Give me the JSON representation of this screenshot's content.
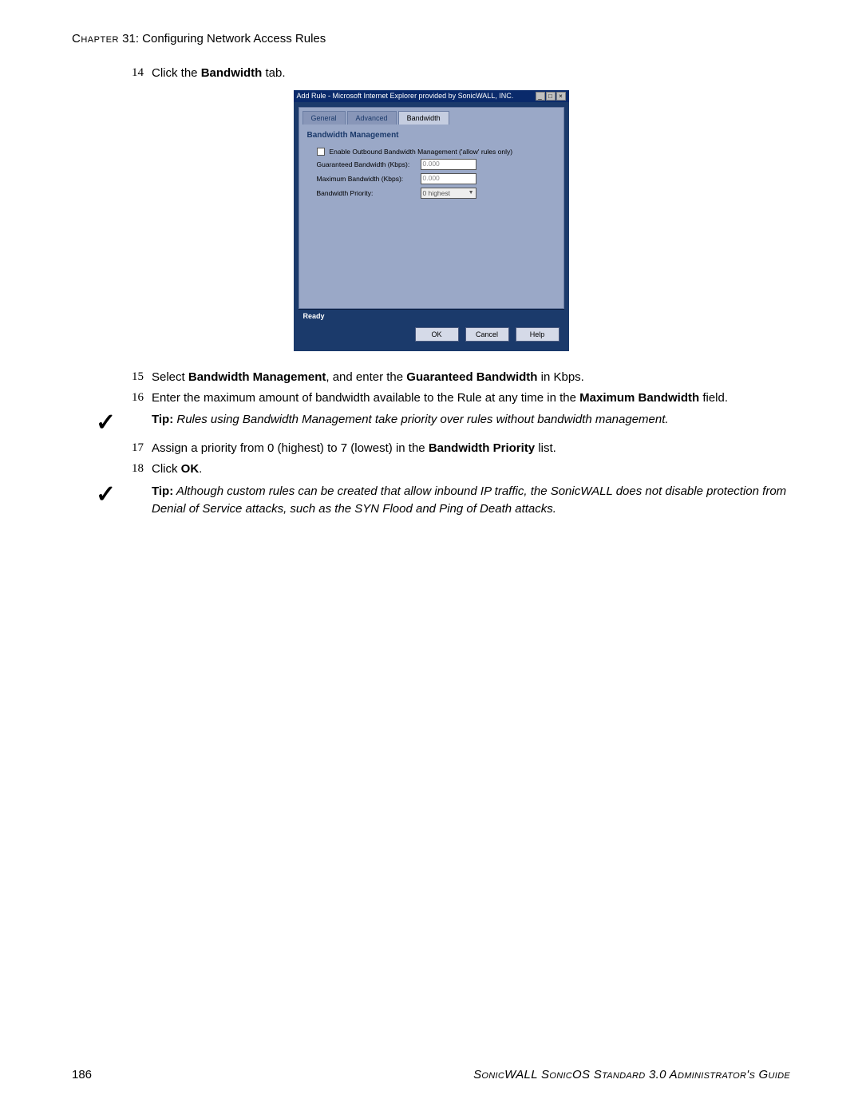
{
  "header": {
    "chapter_label": "Chapter",
    "chapter_num": "31",
    "chapter_title": ": Configuring Network Access Rules"
  },
  "steps": {
    "s14_num": "14",
    "s14_pre": "Click the ",
    "s14_bold": "Bandwidth",
    "s14_post": " tab.",
    "s15_num": "15",
    "s15_a": "Select ",
    "s15_b": "Bandwidth Management",
    "s15_c": ", and enter the ",
    "s15_d": "Guaranteed Bandwidth",
    "s15_e": " in Kbps.",
    "s16_num": "16",
    "s16_a": "Enter the maximum amount of bandwidth available to the Rule at any time in the ",
    "s16_b": "Maximum Bandwidth",
    "s16_c": " field.",
    "s17_num": "17",
    "s17_a": "Assign a priority from 0 (highest) to 7 (lowest) in the ",
    "s17_b": "Bandwidth Priority",
    "s17_c": " list.",
    "s18_num": "18",
    "s18_a": "Click ",
    "s18_b": "OK",
    "s18_c": "."
  },
  "tips": {
    "tip1_label": "Tip:",
    "tip1_text": " Rules using Bandwidth Management take priority over rules without bandwidth management.",
    "tip2_label": "Tip:",
    "tip2_text": " Although custom rules can be created that allow inbound IP traffic, the SonicWALL does not disable protection from Denial of Service attacks, such as the SYN Flood and Ping of Death attacks."
  },
  "dialog": {
    "title": "Add Rule - Microsoft Internet Explorer provided by SonicWALL, INC.",
    "tabs": {
      "general": "General",
      "advanced": "Advanced",
      "bandwidth": "Bandwidth"
    },
    "section_title": "Bandwidth Management",
    "enable_label": "Enable Outbound Bandwidth Management ('allow' rules only)",
    "guaranteed_label": "Guaranteed Bandwidth (Kbps):",
    "guaranteed_value": "0.000",
    "max_label": "Maximum Bandwidth (Kbps):",
    "max_value": "0.000",
    "priority_label": "Bandwidth Priority:",
    "priority_value": "0 highest",
    "status": "Ready",
    "ok": "OK",
    "cancel": "Cancel",
    "help": "Help"
  },
  "footer": {
    "page": "186",
    "guide": "SonicWALL SonicOS Standard 3.0 Administrator's Guide"
  }
}
